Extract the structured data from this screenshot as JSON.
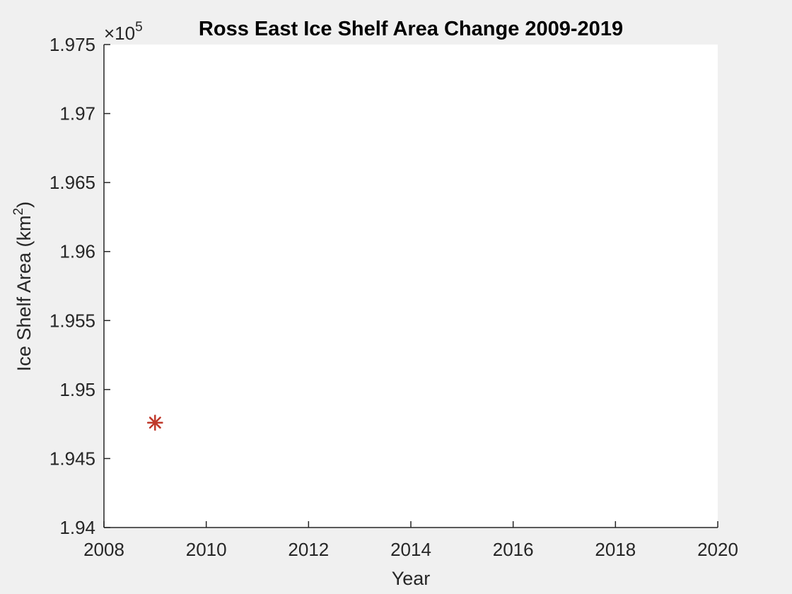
{
  "chart_data": {
    "type": "scatter",
    "title": "Ross East Ice Shelf Area Change 2009-2019",
    "xlabel": "Year",
    "ylabel": {
      "text": "Ice Shelf Area (km",
      "superscript": "2",
      "suffix": ")"
    },
    "y_exponent": {
      "base": "×10",
      "power": "5",
      "multiplier": 100000
    },
    "xlim": [
      2008,
      2020
    ],
    "ylim": [
      1.94,
      1.975
    ],
    "xticks": [
      2008,
      2010,
      2012,
      2014,
      2016,
      2018,
      2020
    ],
    "xtick_labels": [
      "2008",
      "2010",
      "2012",
      "2014",
      "2016",
      "2018",
      "2020"
    ],
    "yticks": [
      1.94,
      1.945,
      1.95,
      1.955,
      1.96,
      1.965,
      1.97,
      1.975
    ],
    "ytick_labels": [
      "1.94",
      "1.945",
      "1.95",
      "1.955",
      "1.96",
      "1.965",
      "1.97",
      "1.975"
    ],
    "grid": false,
    "series": [
      {
        "marker": "asterisk",
        "color": "#c0392b",
        "x": [
          2009,
          2009,
          2009,
          2009,
          2009,
          2009,
          2009,
          2009,
          2009,
          2009,
          2009
        ],
        "y": [
          1.9476,
          1.9476,
          1.9476,
          1.9476,
          1.9476,
          1.9476,
          1.9476,
          1.9476,
          1.9476,
          1.9476,
          1.9476
        ]
      }
    ]
  },
  "colors": {
    "figure_background": "#f0f0f0",
    "axes_background": "#ffffff",
    "axis_color": "#262626",
    "marker_color": "#c0392b"
  }
}
